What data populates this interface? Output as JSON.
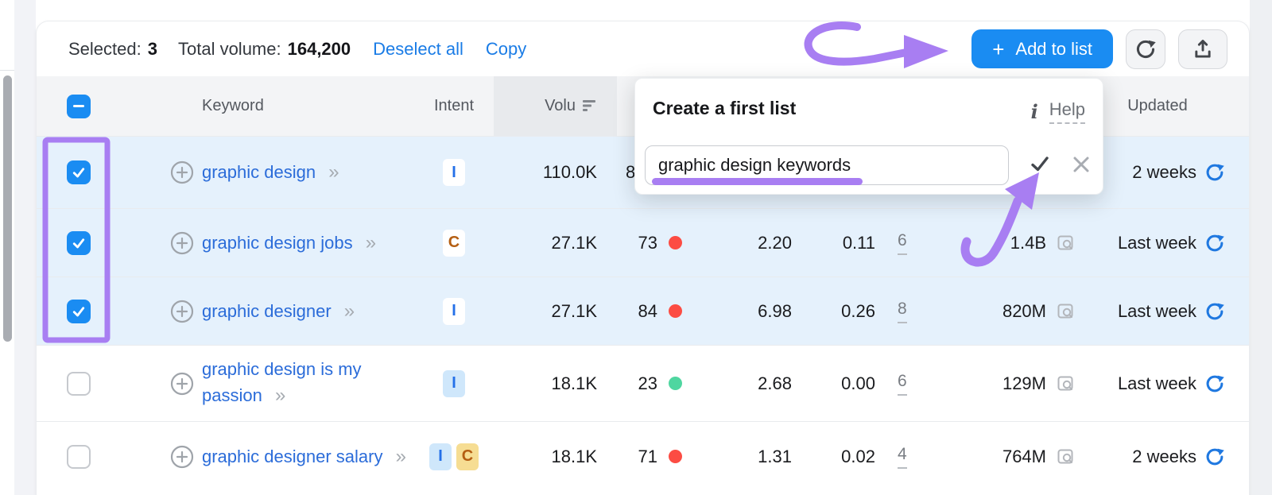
{
  "toolbar": {
    "selected_label": "Selected:",
    "selected_count": "3",
    "total_volume_label": "Total volume:",
    "total_volume": "164,200",
    "deselect_all": "Deselect all",
    "copy": "Copy",
    "add_plus": "+",
    "add_to_list_label": "Add to list"
  },
  "table": {
    "headers": {
      "keyword": "Keyword",
      "intent": "Intent",
      "volume": "Volu",
      "updated": "Updated"
    },
    "rows": [
      {
        "keyword": "graphic design",
        "checked": true,
        "intents": [
          {
            "label": "I",
            "fg": "#2470e8",
            "bg": "#ffffff"
          }
        ],
        "volume": "110.0K",
        "kd": "8",
        "kd_dot_color": null,
        "cpc": "",
        "com": "",
        "serp_features": "",
        "results": "",
        "updated": "2 weeks"
      },
      {
        "keyword": "graphic design jobs",
        "checked": true,
        "intents": [
          {
            "label": "C",
            "fg": "#b45e12",
            "bg": "#ffffff"
          }
        ],
        "volume": "27.1K",
        "kd": "73",
        "kd_dot_color": "#fc4c43",
        "cpc": "2.20",
        "com": "0.11",
        "serp_features": "6",
        "results": "1.4B",
        "updated": "Last week"
      },
      {
        "keyword": "graphic designer",
        "checked": true,
        "intents": [
          {
            "label": "I",
            "fg": "#2470e8",
            "bg": "#ffffff"
          }
        ],
        "volume": "27.1K",
        "kd": "84",
        "kd_dot_color": "#fc4c43",
        "cpc": "6.98",
        "com": "0.26",
        "serp_features": "8",
        "results": "820M",
        "updated": "Last week"
      },
      {
        "keyword": "graphic design is my passion",
        "checked": false,
        "intents": [
          {
            "label": "I",
            "fg": "#2470e8",
            "bg": "#cfe7fb"
          }
        ],
        "volume": "18.1K",
        "kd": "23",
        "kd_dot_color": "#4fd6a0",
        "cpc": "2.68",
        "com": "0.00",
        "serp_features": "6",
        "results": "129M",
        "updated": "Last week"
      },
      {
        "keyword": "graphic designer salary",
        "checked": false,
        "intents": [
          {
            "label": "I",
            "fg": "#2470e8",
            "bg": "#cfe7fb"
          },
          {
            "label": "C",
            "fg": "#b45e12",
            "bg": "#f6dd93"
          }
        ],
        "volume": "18.1K",
        "kd": "71",
        "kd_dot_color": "#fc4c43",
        "cpc": "1.31",
        "com": "0.02",
        "serp_features": "4",
        "results": "764M",
        "updated": "2 weeks"
      }
    ]
  },
  "popup": {
    "title": "Create a first list",
    "info_glyph": "i",
    "help_label": "Help",
    "input_value": "graphic design keywords"
  },
  "icons": {
    "double_chevron": "»",
    "names": [
      "plus-circle-icon",
      "double-chevron-icon",
      "sort-desc-icon",
      "serp-preview-icon",
      "refresh-icon",
      "export-icon",
      "info-icon",
      "check-icon",
      "close-icon",
      "kd-dot"
    ]
  },
  "colors": {
    "accent_blue": "#1a8cf2",
    "link_blue": "#2b6cd9",
    "action_link_blue": "#1a7ce6",
    "selected_row_bg": "#e5f1fc",
    "kd_red": "#fc4c43",
    "kd_green": "#4fd6a0",
    "annotation_purple": "#a87ef2",
    "header_bg": "#f3f4f6",
    "sorted_col_bg": "#e8eaed"
  },
  "annotations": {
    "arrow_to_add_button": "purple curved arrow pointing at Add to list button",
    "box_around_selected_checkboxes": "purple rectangle around 3 checked rows",
    "underline_under_list_name": "purple underline in list name input",
    "arrow_to_confirm": "purple curved arrow pointing at confirm check"
  }
}
